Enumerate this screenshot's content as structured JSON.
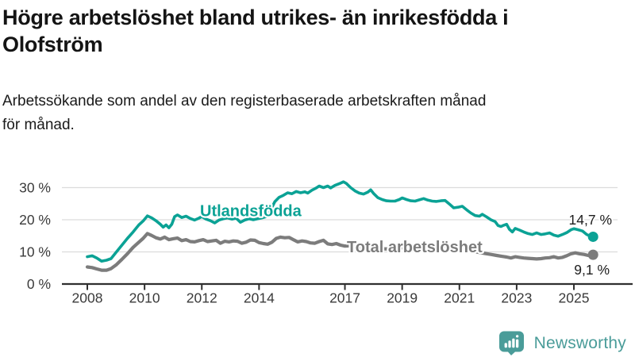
{
  "title_lines": [
    "Högre arbetslöshet bland utrikes- än inrikesfödda i",
    "Olofström"
  ],
  "subtitle_lines": [
    "Arbetssökande som andel av den registerbaserade arbetskraften månad",
    "för månad."
  ],
  "branding": {
    "name": "Newsworthy"
  },
  "colors": {
    "accent_teal": "#0ba295",
    "series_gray": "#7c7c7c",
    "logo_teal": "#4a9c99",
    "axis_line": "#2f2f2f",
    "gridline": "#dcdcdc",
    "axis_label": "#3a3a3a",
    "value_label": "#1d1d1d"
  },
  "chart_data": {
    "type": "line",
    "title": "Högre arbetslöshet bland utrikes- än inrikesfödda i Olofström",
    "subtitle": "Arbetssökande som andel av den registerbaserade arbetskraften månad för månad.",
    "xlabel": "",
    "ylabel": "",
    "grid": "horizontal",
    "x_range": [
      2007.4,
      2026.2
    ],
    "ylim": [
      0,
      33
    ],
    "x_ticks": [
      {
        "value": 2008,
        "label": "2008"
      },
      {
        "value": 2010,
        "label": "2010"
      },
      {
        "value": 2012,
        "label": "2012"
      },
      {
        "value": 2014,
        "label": "2014"
      },
      {
        "value": 2017,
        "label": "2017"
      },
      {
        "value": 2019,
        "label": "2019"
      },
      {
        "value": 2021,
        "label": "2021"
      },
      {
        "value": 2023,
        "label": "2023"
      },
      {
        "value": 2025,
        "label": "2025"
      }
    ],
    "y_ticks": [
      {
        "value": 0,
        "label": "0 %"
      },
      {
        "value": 10,
        "label": "10 %"
      },
      {
        "value": 20,
        "label": "20 %"
      },
      {
        "value": 30,
        "label": "30 %"
      }
    ],
    "series": [
      {
        "name": "Total arbetslöshet",
        "color": "#7c7c7c",
        "end_label": "9,1 %",
        "end_value": 9.1,
        "points": [
          [
            2008.0,
            5.3
          ],
          [
            2008.17,
            5.1
          ],
          [
            2008.33,
            4.7
          ],
          [
            2008.5,
            4.3
          ],
          [
            2008.67,
            4.3
          ],
          [
            2008.83,
            4.8
          ],
          [
            2009.0,
            5.9
          ],
          [
            2009.2,
            7.6
          ],
          [
            2009.4,
            9.4
          ],
          [
            2009.6,
            11.4
          ],
          [
            2009.8,
            13.0
          ],
          [
            2009.95,
            14.2
          ],
          [
            2010.1,
            15.7
          ],
          [
            2010.25,
            15.1
          ],
          [
            2010.4,
            14.4
          ],
          [
            2010.55,
            14.0
          ],
          [
            2010.7,
            14.6
          ],
          [
            2010.85,
            13.8
          ],
          [
            2011.0,
            14.1
          ],
          [
            2011.15,
            14.3
          ],
          [
            2011.3,
            13.5
          ],
          [
            2011.45,
            13.8
          ],
          [
            2011.6,
            13.2
          ],
          [
            2011.75,
            13.1
          ],
          [
            2011.9,
            13.5
          ],
          [
            2012.05,
            13.8
          ],
          [
            2012.2,
            13.2
          ],
          [
            2012.35,
            13.4
          ],
          [
            2012.5,
            13.6
          ],
          [
            2012.65,
            12.7
          ],
          [
            2012.8,
            13.3
          ],
          [
            2012.95,
            13.1
          ],
          [
            2013.1,
            13.4
          ],
          [
            2013.25,
            13.3
          ],
          [
            2013.4,
            12.7
          ],
          [
            2013.55,
            13.0
          ],
          [
            2013.7,
            13.7
          ],
          [
            2013.85,
            13.6
          ],
          [
            2014.0,
            12.9
          ],
          [
            2014.15,
            12.6
          ],
          [
            2014.3,
            12.4
          ],
          [
            2014.45,
            13.0
          ],
          [
            2014.6,
            14.2
          ],
          [
            2014.75,
            14.6
          ],
          [
            2014.9,
            14.4
          ],
          [
            2015.05,
            14.5
          ],
          [
            2015.2,
            13.8
          ],
          [
            2015.35,
            13.1
          ],
          [
            2015.5,
            13.4
          ],
          [
            2015.65,
            13.2
          ],
          [
            2015.8,
            12.8
          ],
          [
            2015.95,
            12.7
          ],
          [
            2016.1,
            13.2
          ],
          [
            2016.25,
            13.6
          ],
          [
            2016.4,
            12.5
          ],
          [
            2016.55,
            12.3
          ],
          [
            2016.7,
            12.6
          ],
          [
            2016.85,
            12.1
          ],
          [
            2017.0,
            11.8
          ],
          [
            2017.2,
            11.9
          ],
          [
            2017.4,
            11.6
          ],
          [
            2017.6,
            11.4
          ],
          [
            2017.8,
            11.3
          ],
          [
            2018.0,
            11.2
          ],
          [
            2018.25,
            11.0
          ],
          [
            2018.5,
            10.9
          ],
          [
            2018.75,
            11.1
          ],
          [
            2019.0,
            11.3
          ],
          [
            2019.25,
            11.0
          ],
          [
            2019.5,
            10.9
          ],
          [
            2019.75,
            11.0
          ],
          [
            2020.0,
            11.3
          ],
          [
            2020.3,
            11.8
          ],
          [
            2020.5,
            11.9
          ],
          [
            2020.7,
            11.5
          ],
          [
            2021.0,
            11.0
          ],
          [
            2021.3,
            10.5
          ],
          [
            2021.6,
            10.0
          ],
          [
            2021.9,
            9.5
          ],
          [
            2022.1,
            9.2
          ],
          [
            2022.3,
            8.9
          ],
          [
            2022.5,
            8.6
          ],
          [
            2022.65,
            8.4
          ],
          [
            2022.8,
            8.1
          ],
          [
            2022.95,
            8.5
          ],
          [
            2023.1,
            8.3
          ],
          [
            2023.25,
            8.1
          ],
          [
            2023.4,
            8.0
          ],
          [
            2023.55,
            7.9
          ],
          [
            2023.7,
            7.8
          ],
          [
            2023.85,
            7.9
          ],
          [
            2024.0,
            8.1
          ],
          [
            2024.15,
            8.2
          ],
          [
            2024.3,
            8.5
          ],
          [
            2024.45,
            8.1
          ],
          [
            2024.6,
            8.3
          ],
          [
            2024.75,
            8.8
          ],
          [
            2024.9,
            9.4
          ],
          [
            2025.05,
            9.7
          ],
          [
            2025.2,
            9.4
          ],
          [
            2025.35,
            9.2
          ],
          [
            2025.5,
            8.9
          ],
          [
            2025.6,
            9.0
          ],
          [
            2025.67,
            9.1
          ]
        ]
      },
      {
        "name": "Utlandsfödda",
        "color": "#0ba295",
        "end_label": "14,7 %",
        "end_value": 14.7,
        "points": [
          [
            2008.0,
            8.5
          ],
          [
            2008.17,
            8.8
          ],
          [
            2008.33,
            8.1
          ],
          [
            2008.5,
            7.1
          ],
          [
            2008.67,
            7.4
          ],
          [
            2008.83,
            7.9
          ],
          [
            2009.0,
            9.8
          ],
          [
            2009.2,
            12.0
          ],
          [
            2009.4,
            14.2
          ],
          [
            2009.6,
            16.2
          ],
          [
            2009.8,
            18.4
          ],
          [
            2009.95,
            19.6
          ],
          [
            2010.1,
            21.2
          ],
          [
            2010.25,
            20.6
          ],
          [
            2010.4,
            19.7
          ],
          [
            2010.55,
            18.6
          ],
          [
            2010.65,
            17.7
          ],
          [
            2010.75,
            18.4
          ],
          [
            2010.85,
            17.5
          ],
          [
            2010.95,
            18.6
          ],
          [
            2011.05,
            21.0
          ],
          [
            2011.15,
            21.5
          ],
          [
            2011.3,
            20.7
          ],
          [
            2011.45,
            21.1
          ],
          [
            2011.6,
            20.4
          ],
          [
            2011.75,
            19.9
          ],
          [
            2011.9,
            20.5
          ],
          [
            2012.0,
            21.0
          ],
          [
            2012.15,
            20.2
          ],
          [
            2012.3,
            19.7
          ],
          [
            2012.45,
            19.0
          ],
          [
            2012.6,
            19.9
          ],
          [
            2012.75,
            20.3
          ],
          [
            2012.9,
            20.6
          ],
          [
            2013.05,
            20.2
          ],
          [
            2013.2,
            20.5
          ],
          [
            2013.35,
            19.2
          ],
          [
            2013.5,
            19.9
          ],
          [
            2013.65,
            20.3
          ],
          [
            2013.8,
            20.0
          ],
          [
            2013.95,
            20.3
          ],
          [
            2014.1,
            20.6
          ],
          [
            2014.25,
            21.0
          ],
          [
            2014.4,
            23.0
          ],
          [
            2014.55,
            25.6
          ],
          [
            2014.7,
            27.0
          ],
          [
            2014.85,
            27.6
          ],
          [
            2015.0,
            28.4
          ],
          [
            2015.15,
            28.1
          ],
          [
            2015.3,
            28.8
          ],
          [
            2015.45,
            28.4
          ],
          [
            2015.6,
            28.7
          ],
          [
            2015.7,
            28.3
          ],
          [
            2015.85,
            29.2
          ],
          [
            2016.0,
            29.9
          ],
          [
            2016.1,
            30.5
          ],
          [
            2016.25,
            30.0
          ],
          [
            2016.4,
            30.5
          ],
          [
            2016.5,
            29.9
          ],
          [
            2016.65,
            30.7
          ],
          [
            2016.8,
            31.2
          ],
          [
            2016.95,
            31.8
          ],
          [
            2017.05,
            31.3
          ],
          [
            2017.2,
            30.0
          ],
          [
            2017.35,
            29.0
          ],
          [
            2017.5,
            28.3
          ],
          [
            2017.65,
            28.0
          ],
          [
            2017.8,
            28.6
          ],
          [
            2017.9,
            29.3
          ],
          [
            2018.0,
            28.2
          ],
          [
            2018.15,
            26.9
          ],
          [
            2018.3,
            26.3
          ],
          [
            2018.45,
            25.9
          ],
          [
            2018.6,
            25.8
          ],
          [
            2018.75,
            25.8
          ],
          [
            2018.9,
            26.3
          ],
          [
            2019.0,
            26.8
          ],
          [
            2019.15,
            26.3
          ],
          [
            2019.3,
            25.9
          ],
          [
            2019.45,
            25.8
          ],
          [
            2019.6,
            26.2
          ],
          [
            2019.75,
            26.6
          ],
          [
            2019.9,
            26.1
          ],
          [
            2020.05,
            25.8
          ],
          [
            2020.2,
            25.7
          ],
          [
            2020.35,
            25.9
          ],
          [
            2020.5,
            26.0
          ],
          [
            2020.65,
            24.9
          ],
          [
            2020.8,
            23.7
          ],
          [
            2020.95,
            23.9
          ],
          [
            2021.1,
            24.2
          ],
          [
            2021.25,
            23.1
          ],
          [
            2021.4,
            22.1
          ],
          [
            2021.55,
            21.3
          ],
          [
            2021.7,
            21.1
          ],
          [
            2021.8,
            21.7
          ],
          [
            2021.95,
            20.9
          ],
          [
            2022.1,
            20.0
          ],
          [
            2022.25,
            19.4
          ],
          [
            2022.35,
            18.2
          ],
          [
            2022.45,
            17.9
          ],
          [
            2022.55,
            18.3
          ],
          [
            2022.65,
            18.6
          ],
          [
            2022.75,
            17.0
          ],
          [
            2022.85,
            16.2
          ],
          [
            2022.95,
            17.3
          ],
          [
            2023.1,
            16.8
          ],
          [
            2023.25,
            16.2
          ],
          [
            2023.4,
            15.7
          ],
          [
            2023.55,
            15.4
          ],
          [
            2023.7,
            15.9
          ],
          [
            2023.85,
            15.4
          ],
          [
            2024.0,
            15.6
          ],
          [
            2024.15,
            15.9
          ],
          [
            2024.3,
            15.2
          ],
          [
            2024.45,
            14.9
          ],
          [
            2024.6,
            15.4
          ],
          [
            2024.75,
            16.0
          ],
          [
            2024.9,
            16.9
          ],
          [
            2025.0,
            17.2
          ],
          [
            2025.15,
            16.9
          ],
          [
            2025.3,
            16.5
          ],
          [
            2025.45,
            15.4
          ],
          [
            2025.58,
            14.9
          ],
          [
            2025.67,
            14.7
          ]
        ]
      }
    ],
    "legend_position": "inline-labels"
  }
}
